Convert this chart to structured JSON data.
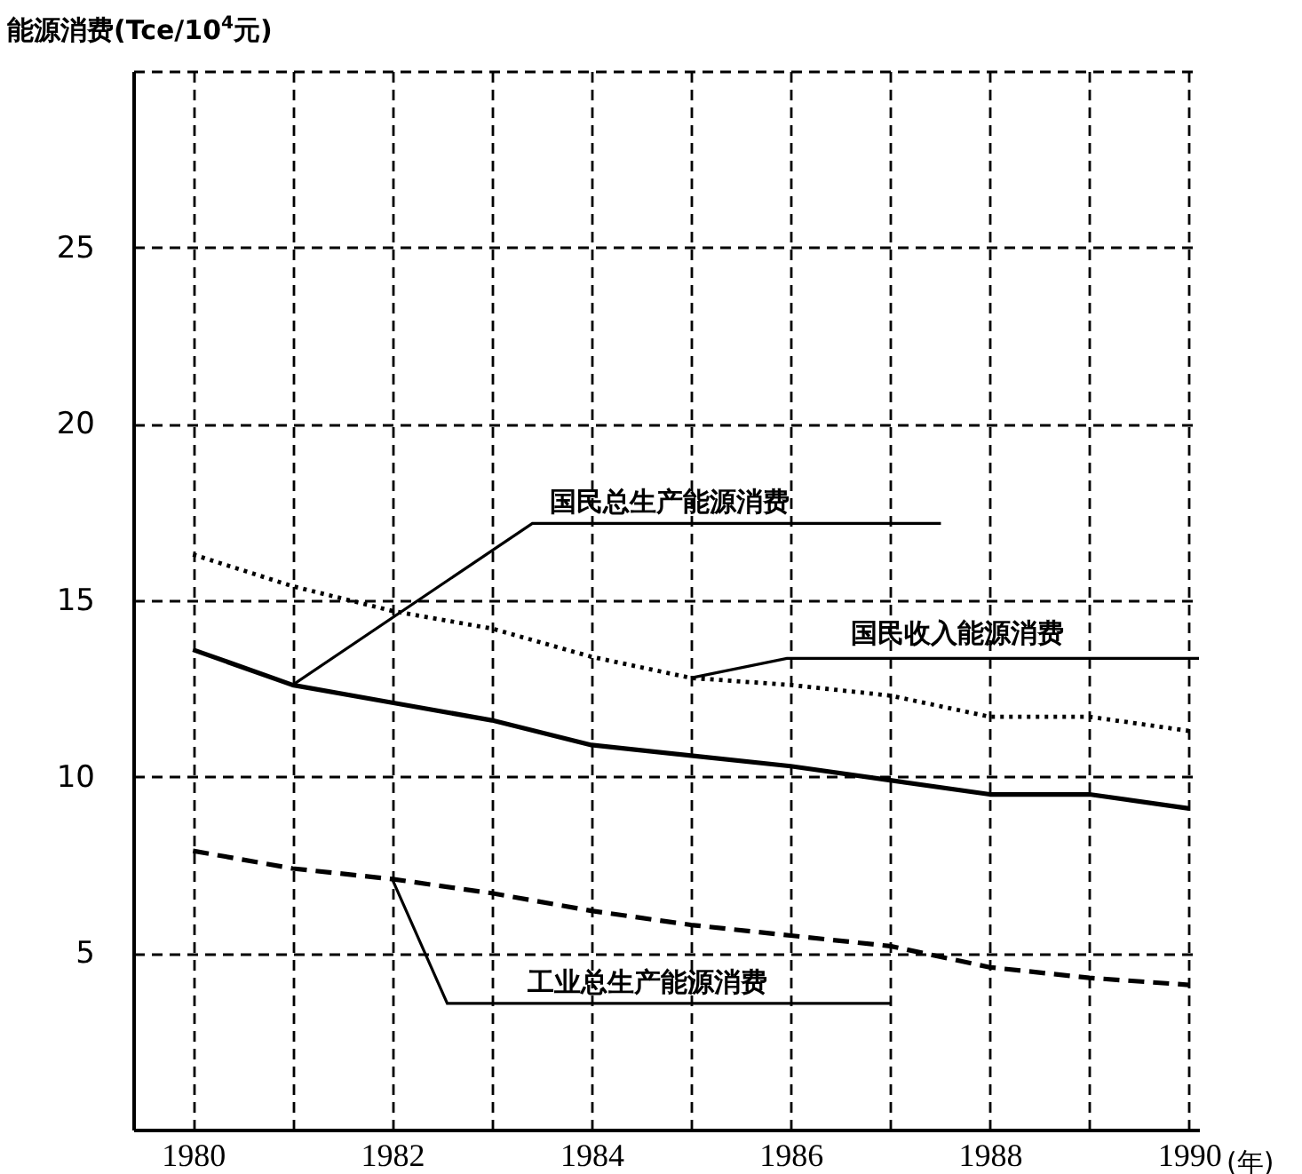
{
  "chart_data": {
    "type": "line",
    "ylabel": "能源消费(Tce/10$^{4}$元)",
    "xlabel": "(年)",
    "x": [
      1980,
      1981,
      1982,
      1983,
      1984,
      1985,
      1986,
      1987,
      1988,
      1989,
      1990
    ],
    "xlim": [
      1979.4,
      1990.1
    ],
    "xticks": [
      1980,
      {
        "value": 1981,
        "label": null
      },
      1982,
      {
        "value": 1983,
        "label": null
      },
      1984,
      {
        "value": 1985,
        "label": null
      },
      1986,
      {
        "value": 1987,
        "label": null
      },
      1988,
      {
        "value": 1989,
        "label": null
      },
      1990
    ],
    "ylim": [
      0,
      30
    ],
    "yticks": [
      5,
      10,
      15,
      20,
      25,
      {
        "value": 30,
        "label": null
      }
    ],
    "grid": true,
    "series": [
      {
        "name": "国民总生产能源消费",
        "color": "#000000",
        "line_style": "solid",
        "values": [
          13.6,
          12.6,
          12.1,
          11.6,
          10.9,
          10.6,
          10.3,
          9.9,
          9.5,
          9.5,
          9.1
        ]
      },
      {
        "name": "国民收入能源消费",
        "color": "#000000",
        "line_style": "dotted",
        "values": [
          16.3,
          15.4,
          14.7,
          14.2,
          13.4,
          12.8,
          12.6,
          12.3,
          11.7,
          11.7,
          11.3
        ]
      },
      {
        "name": "工业总生产能源消费",
        "color": "#000000",
        "line_style": "dashed",
        "values": [
          7.9,
          7.4,
          7.1,
          6.7,
          6.2,
          5.8,
          5.5,
          5.2,
          4.6,
          4.3,
          4.1
        ]
      }
    ]
  }
}
